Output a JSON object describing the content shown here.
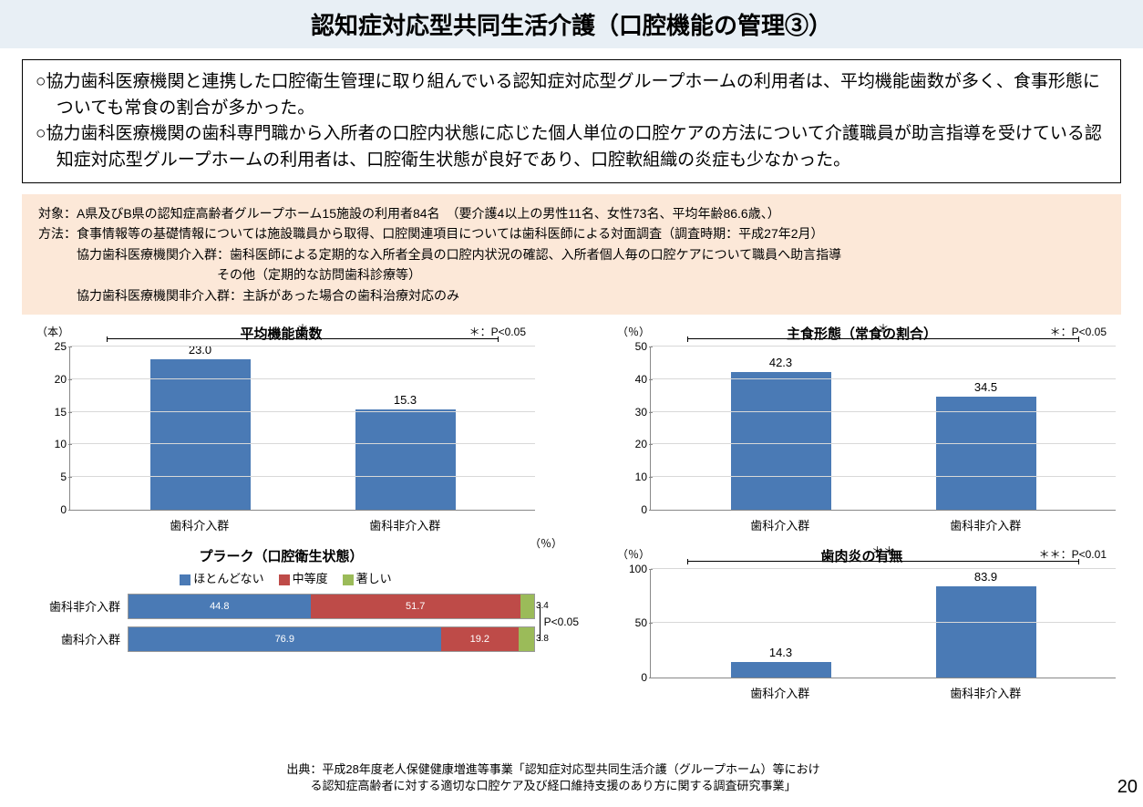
{
  "title": "認知症対応型共同生活介護（口腔機能の管理③）",
  "summary": {
    "l1": "○協力歯科医療機関と連携した口腔衛生管理に取り組んでいる認知症対応型グループホームの利用者は、平均機能歯数が多く、食事形態についても常食の割合が多かった。",
    "l2": "○協力歯科医療機関の歯科専門職から入所者の口腔内状態に応じた個人単位の口腔ケアの方法について介護職員が助言指導を受けている認知症対応型グループホームの利用者は、口腔衛生状態が良好であり、口腔軟組織の炎症も少なかった。"
  },
  "method": {
    "l1": "対象：A県及びB県の認知症高齢者グループホーム15施設の利用者84名　（要介護4以上の男性11名、女性73名、平均年齢86.6歳、）",
    "l2": "方法：食事情報等の基礎情報については施設職員から取得、口腔関連項目については歯科医師による対面調査（調査時期：平成27年2月）",
    "l3": "協力歯科医療機関介入群：歯科医師による定期的な入所者全員の口腔内状況の確認、入所者個人毎の口腔ケアについて職員へ助言指導",
    "l4": "その他（定期的な訪問歯科診療等）",
    "l5": "協力歯科医療機関非介入群：主訴があった場合の歯科治療対応のみ"
  },
  "charts": {
    "teeth": {
      "title": "平均機能歯数",
      "y_unit": "（本）",
      "sig_note": "＊：P<0.05",
      "sig_mark": "＊",
      "ymax": 25,
      "ytick_step": 5,
      "cats": [
        "歯科介入群",
        "歯科非介入群"
      ],
      "vals": [
        "23.0",
        "15.3"
      ],
      "nums": [
        23.0,
        15.3
      ],
      "bar_color": "#4a7ab5"
    },
    "staple": {
      "title": "主食形態（常食の割合）",
      "y_unit": "（％）",
      "sig_note": "＊：P<0.05",
      "sig_mark": "＊",
      "ymax": 50,
      "ytick_step": 10,
      "cats": [
        "歯科介入群",
        "歯科非介入群"
      ],
      "vals": [
        "42.3",
        "34.5"
      ],
      "nums": [
        42.3,
        34.5
      ],
      "bar_color": "#4a7ab5"
    },
    "plaque": {
      "title": "プラーク（口腔衛生状態）",
      "unit": "（％）",
      "sig_note": "P<0.05",
      "legend": [
        {
          "label": "ほとんどない",
          "color": "#4a7ab5"
        },
        {
          "label": "中等度",
          "color": "#be4b48"
        },
        {
          "label": "著しい",
          "color": "#9bbb59"
        }
      ],
      "rows": [
        {
          "cat": "歯科非介入群",
          "segs": [
            44.8,
            51.7,
            3.4
          ],
          "labels": [
            "44.8",
            "51.7",
            "3.4"
          ]
        },
        {
          "cat": "歯科介入群",
          "segs": [
            76.9,
            19.2,
            3.8
          ],
          "labels": [
            "76.9",
            "19.2",
            "3.8"
          ]
        }
      ]
    },
    "gingivitis": {
      "title": "歯肉炎の有無",
      "y_unit": "（％）",
      "sig_note": "＊＊：P<0.01",
      "sig_mark": "＊＊",
      "ymax": 100,
      "ytick_step": 50,
      "cats": [
        "歯科介入群",
        "歯科非介入群"
      ],
      "vals": [
        "14.3",
        "83.9"
      ],
      "nums": [
        14.3,
        83.9
      ],
      "bar_color": "#4a7ab5"
    }
  },
  "source": {
    "l1": "出典：平成28年度老人保健健康増進等事業「認知症対応型共同生活介護（グループホーム）等におけ",
    "l2": "る認知症高齢者に対する適切な口腔ケア及び経口維持支援のあり方に関する調査研究事業」"
  },
  "page_no": "20"
}
